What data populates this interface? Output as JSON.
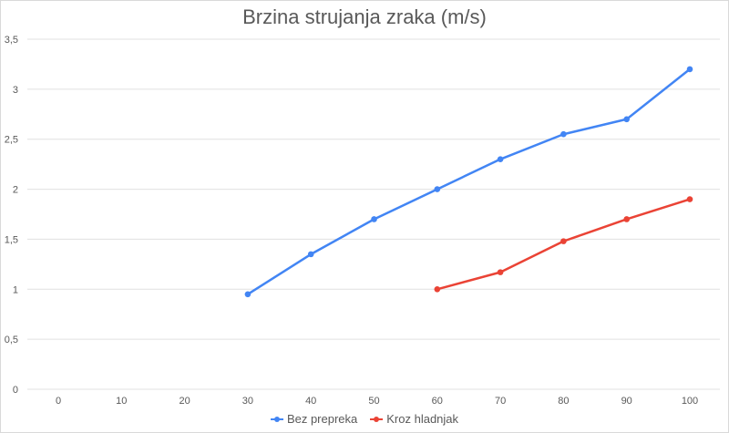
{
  "chart_data": {
    "type": "line",
    "title": "Brzina strujanja zraka (m/s)",
    "xlabel": "",
    "ylabel": "",
    "x": [
      0,
      10,
      20,
      30,
      40,
      50,
      60,
      70,
      80,
      90,
      100
    ],
    "x_tick_labels": [
      "0",
      "10",
      "20",
      "30",
      "40",
      "50",
      "60",
      "70",
      "80",
      "90",
      "100"
    ],
    "y_tick_labels": [
      "0",
      "0,5",
      "1",
      "1,5",
      "2",
      "2,5",
      "3",
      "3,5"
    ],
    "ylim": [
      0,
      3.5
    ],
    "grid": true,
    "legend_position": "bottom",
    "series": [
      {
        "name": "Bez prepreka",
        "color": "#4285f4",
        "points": [
          [
            30,
            0.95
          ],
          [
            40,
            1.35
          ],
          [
            50,
            1.7
          ],
          [
            60,
            2.0
          ],
          [
            70,
            2.3
          ],
          [
            80,
            2.55
          ],
          [
            90,
            2.7
          ],
          [
            100,
            3.2
          ]
        ]
      },
      {
        "name": "Kroz hladnjak",
        "color": "#ea4335",
        "points": [
          [
            60,
            1.0
          ],
          [
            70,
            1.17
          ],
          [
            80,
            1.48
          ],
          [
            90,
            1.7
          ],
          [
            100,
            1.9
          ]
        ]
      }
    ]
  }
}
